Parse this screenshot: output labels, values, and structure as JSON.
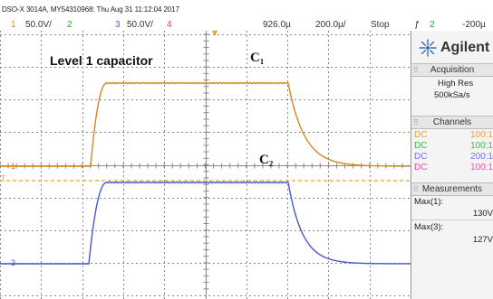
{
  "header": {
    "title": "DSO-X 3014A, MY54310968: Thu Aug 31 11:12:04 2017",
    "ch1_num": "1",
    "ch1_scale": "50.0V/",
    "ch2_num": "2",
    "ch3_num": "3",
    "ch3_scale": "50.0V/",
    "ch4_num": "4",
    "time_delay": "926.0µ",
    "timebase": "200.0µ/",
    "run_state": "Stop",
    "trigger_icon": "ƒ",
    "trigger_source": "2",
    "trigger_level": "-200µ"
  },
  "screen": {
    "label": "Level 1 capacitor",
    "c1_label": "C₁",
    "c2_label": "C₂",
    "ch1_marker": "1",
    "ch3_marker": "3",
    "trig_marker": "T"
  },
  "sidebar": {
    "brand": "Agilent",
    "brand_icon": "agilent-spark-icon",
    "acquisition": {
      "header": "Acquisition",
      "mode": "High Res",
      "rate": "500kSa/s"
    },
    "channels": {
      "header": "Channels",
      "rows": [
        {
          "coupling": "DC",
          "value": "100:1",
          "color": "#f0a030"
        },
        {
          "coupling": "DC",
          "value": "100:1",
          "color": "#2ec42e"
        },
        {
          "coupling": "DC",
          "value": "200:1",
          "color": "#7070ff"
        },
        {
          "coupling": "DC",
          "value": "100:1",
          "color": "#ff44aa"
        }
      ]
    },
    "measurements": {
      "header": "Measurements",
      "items": [
        {
          "label": "Max(1):",
          "value": "130V"
        },
        {
          "label": "Max(3):",
          "value": "127V"
        }
      ]
    }
  },
  "colors": {
    "ch1": "#d4891a",
    "ch2": "#2ec42e",
    "ch3": "#4a58c8",
    "ch4": "#ff44aa",
    "trigger": "#f0a030"
  }
}
